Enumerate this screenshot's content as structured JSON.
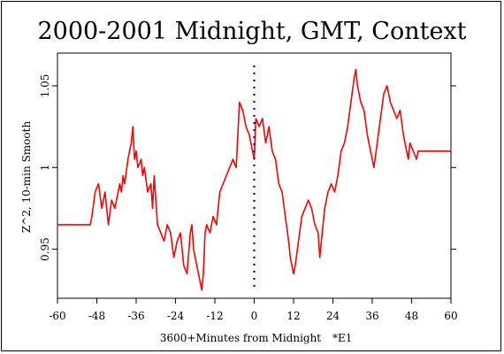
{
  "chart_data": {
    "type": "line",
    "title": "2000-2001 Midnight, GMT, Context",
    "xlabel": "3600+Minutes from Midnight",
    "xlabel_note": "*E1",
    "ylabel": "Z^2, 10-min Smooth",
    "xlim": [
      -60,
      60
    ],
    "ylim": [
      0.92,
      1.07
    ],
    "xticks": [
      -60,
      -48,
      -36,
      -24,
      -12,
      0,
      12,
      24,
      36,
      48,
      60
    ],
    "yticks": [
      0.95,
      1,
      1.05
    ],
    "ytick_labels": [
      "0.95",
      "1",
      "1.05"
    ],
    "grid": false,
    "line_color": "#ff0000",
    "marker_color": "#0000cc",
    "vertical_marker_x": 0,
    "series": [
      {
        "points": [
          [
            -60,
            0.965
          ],
          [
            -50,
            0.965
          ],
          [
            -49.5,
            0.97
          ],
          [
            -48.5,
            0.985
          ],
          [
            -47.5,
            0.99
          ],
          [
            -46.5,
            0.975
          ],
          [
            -45.5,
            0.985
          ],
          [
            -44.5,
            0.965
          ],
          [
            -43.5,
            0.98
          ],
          [
            -42.5,
            0.975
          ],
          [
            -41.5,
            0.985
          ],
          [
            -41,
            0.99
          ],
          [
            -40.5,
            0.985
          ],
          [
            -40,
            0.995
          ],
          [
            -39.5,
            0.99
          ],
          [
            -38.5,
            1.005
          ],
          [
            -37.5,
            1.015
          ],
          [
            -37,
            1.025
          ],
          [
            -36.5,
            1.005
          ],
          [
            -36,
            1.01
          ],
          [
            -35.5,
            1.0
          ],
          [
            -34.5,
            1.005
          ],
          [
            -34,
            0.995
          ],
          [
            -33.5,
            1.0
          ],
          [
            -32.5,
            0.985
          ],
          [
            -31.5,
            0.99
          ],
          [
            -31,
            0.975
          ],
          [
            -30.5,
            0.995
          ],
          [
            -29.5,
            0.965
          ],
          [
            -28.5,
            0.96
          ],
          [
            -27.5,
            0.955
          ],
          [
            -26.5,
            0.965
          ],
          [
            -25.5,
            0.96
          ],
          [
            -24.5,
            0.945
          ],
          [
            -23.5,
            0.955
          ],
          [
            -22.5,
            0.96
          ],
          [
            -21.5,
            0.94
          ],
          [
            -20.5,
            0.935
          ],
          [
            -19.5,
            0.96
          ],
          [
            -19,
            0.965
          ],
          [
            -18.5,
            0.95
          ],
          [
            -17.5,
            0.94
          ],
          [
            -16.5,
            0.93
          ],
          [
            -16,
            0.925
          ],
          [
            -15.5,
            0.935
          ],
          [
            -15,
            0.96
          ],
          [
            -14.5,
            0.965
          ],
          [
            -13.5,
            0.96
          ],
          [
            -12.5,
            0.97
          ],
          [
            -11.5,
            0.965
          ],
          [
            -11,
            0.975
          ],
          [
            -10.5,
            0.985
          ],
          [
            -9.5,
            0.99
          ],
          [
            -8.5,
            0.995
          ],
          [
            -7.5,
            1.0
          ],
          [
            -6.5,
            1.005
          ],
          [
            -5.5,
            1.0
          ],
          [
            -5,
            1.02
          ],
          [
            -4.5,
            1.04
          ],
          [
            -3.5,
            1.035
          ],
          [
            -2.5,
            1.025
          ],
          [
            -1.5,
            1.02
          ],
          [
            -1,
            1.015
          ],
          [
            -0.5,
            1.01
          ],
          [
            0,
            1.005
          ],
          [
            0.5,
            1.03
          ],
          [
            1.5,
            1.025
          ],
          [
            2.5,
            1.03
          ],
          [
            3.5,
            1.015
          ],
          [
            4.5,
            1.025
          ],
          [
            5.5,
            1.01
          ],
          [
            6.5,
            1.005
          ],
          [
            7.5,
            0.99
          ],
          [
            8.5,
            0.985
          ],
          [
            9.5,
            0.97
          ],
          [
            10.5,
            0.955
          ],
          [
            11,
            0.945
          ],
          [
            11.5,
            0.94
          ],
          [
            12,
            0.935
          ],
          [
            12.5,
            0.94
          ],
          [
            13.5,
            0.955
          ],
          [
            14.5,
            0.97
          ],
          [
            15.5,
            0.975
          ],
          [
            16.5,
            0.98
          ],
          [
            17.5,
            0.975
          ],
          [
            18.5,
            0.965
          ],
          [
            19.5,
            0.96
          ],
          [
            20,
            0.945
          ],
          [
            20.5,
            0.955
          ],
          [
            21.5,
            0.975
          ],
          [
            22.5,
            0.985
          ],
          [
            23.5,
            0.99
          ],
          [
            24.5,
            0.985
          ],
          [
            25.5,
            0.995
          ],
          [
            26.5,
            1.01
          ],
          [
            27.5,
            1.015
          ],
          [
            28.5,
            1.025
          ],
          [
            29.5,
            1.04
          ],
          [
            30.5,
            1.055
          ],
          [
            31,
            1.06
          ],
          [
            31.5,
            1.05
          ],
          [
            32.5,
            1.04
          ],
          [
            33.5,
            1.035
          ],
          [
            34.5,
            1.02
          ],
          [
            35.5,
            1.01
          ],
          [
            36.5,
            1.0
          ],
          [
            37.5,
            1.015
          ],
          [
            38.5,
            1.03
          ],
          [
            39.5,
            1.045
          ],
          [
            40.5,
            1.05
          ],
          [
            41.5,
            1.04
          ],
          [
            42.5,
            1.035
          ],
          [
            43.5,
            1.03
          ],
          [
            44.5,
            1.035
          ],
          [
            45.5,
            1.02
          ],
          [
            46.5,
            1.01
          ],
          [
            47,
            1.005
          ],
          [
            47.5,
            1.015
          ],
          [
            48.5,
            1.01
          ],
          [
            49.5,
            1.005
          ],
          [
            50,
            1.01
          ],
          [
            60,
            1.01
          ]
        ]
      }
    ]
  }
}
